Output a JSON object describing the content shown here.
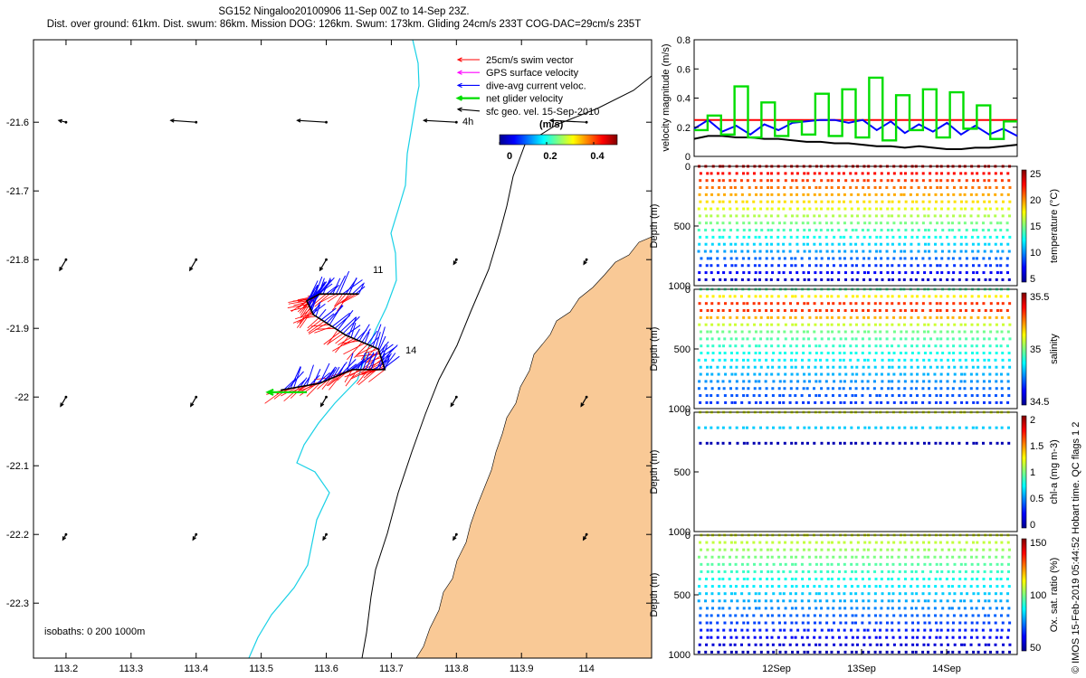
{
  "title_line1": "SG152 Ningaloo20100906 11-Sep 00Z to 14-Sep 23Z.",
  "title_line2": "Dist. over ground: 61km. Dist. swum: 86km. Mission DOG: 126km. Swum: 173km. Gliding 24cm/s 233T COG-DAC=29cm/s 235T",
  "side_note": "© IMOS 15-Feb-2019 05:44:52 Hobart time. QC flags 1  2",
  "colors": {
    "land": "#F9C996",
    "isobath200": "#19D1E6",
    "swim": "#FF0000",
    "gps": "#FF00FF",
    "dac": "#0000FF",
    "net": "#00DD00",
    "sfc": "#000000"
  },
  "chart_data": [
    {
      "type": "map",
      "x_ticks": [
        "113.2",
        "113.3",
        "113.4",
        "113.5",
        "113.6",
        "113.7",
        "113.8",
        "113.9",
        "114"
      ],
      "y_ticks": [
        "-21.6",
        "-21.7",
        "-21.8",
        "-21.9",
        "-22",
        "-22.1",
        "-22.2",
        "-22.3"
      ],
      "xlim": [
        113.15,
        114.1
      ],
      "ylim": [
        -22.38,
        -21.48
      ],
      "legend": [
        {
          "label": "25cm/s swim vector",
          "color": "#FF0000"
        },
        {
          "label": "GPS surface velocity",
          "color": "#FF00FF"
        },
        {
          "label": "dive-avg current veloc.",
          "color": "#0000FF"
        },
        {
          "label": "net glider velocity",
          "color": "#00DD00"
        },
        {
          "label": "sfc geo. vel. 15-Sep-2010",
          "color": "#000000"
        }
      ],
      "time_step_label": "4h",
      "colorbar": {
        "title": "(m/s)",
        "ticks": [
          "0",
          "0.2",
          "0.4"
        ],
        "range": [
          0,
          0.5
        ]
      },
      "isobaths_label": "isobaths: 0   200  1000m",
      "day_labels": [
        "11",
        "14"
      ],
      "track": [
        [
          113.65,
          -21.85
        ],
        [
          113.59,
          -21.85
        ],
        [
          113.57,
          -21.86
        ],
        [
          113.58,
          -21.88
        ],
        [
          113.63,
          -21.91
        ],
        [
          113.68,
          -21.93
        ],
        [
          113.69,
          -21.96
        ],
        [
          113.64,
          -21.96
        ],
        [
          113.59,
          -21.98
        ],
        [
          113.53,
          -21.99
        ]
      ]
    },
    {
      "type": "line",
      "ylabel": "velocity magnitude (m/s)",
      "ylim": [
        0,
        0.8
      ],
      "y_ticks": [
        "0",
        "0.2",
        "0.4",
        "0.6",
        "0.8"
      ],
      "series": [
        {
          "name": "swim",
          "color": "#FF0000",
          "values": [
            0.25,
            0.25
          ]
        },
        {
          "name": "dive-avg current",
          "color": "#0000FF",
          "values": [
            0.19,
            0.25,
            0.17,
            0.21,
            0.15,
            0.22,
            0.18,
            0.23,
            0.24,
            0.25,
            0.25,
            0.23,
            0.25,
            0.18,
            0.24,
            0.16,
            0.22,
            0.17,
            0.23,
            0.15,
            0.21,
            0.15,
            0.19,
            0.14
          ]
        },
        {
          "name": "sfc geo",
          "color": "#000000",
          "values": [
            0.12,
            0.14,
            0.14,
            0.13,
            0.13,
            0.12,
            0.12,
            0.11,
            0.1,
            0.1,
            0.09,
            0.09,
            0.08,
            0.07,
            0.07,
            0.06,
            0.07,
            0.06,
            0.05,
            0.05,
            0.06,
            0.06,
            0.07,
            0.08
          ]
        },
        {
          "name": "net glider",
          "color": "#00DD00",
          "values": [
            0.18,
            0.28,
            0.15,
            0.48,
            0.13,
            0.37,
            0.14,
            0.24,
            0.15,
            0.43,
            0.14,
            0.46,
            0.13,
            0.54,
            0.11,
            0.42,
            0.18,
            0.46,
            0.13,
            0.44,
            0.19,
            0.35,
            0.12,
            0.24
          ]
        }
      ]
    },
    {
      "type": "heatmap",
      "panels": [
        {
          "ylabel": "Depth (m)",
          "clabel": "temperature (°C)",
          "cticks": [
            "25",
            "20",
            "15",
            "10",
            "5"
          ],
          "y_ticks": [
            "0",
            "500",
            "1000"
          ],
          "profile_depth_max": 950
        },
        {
          "ylabel": "Depth (m)",
          "clabel": "salinity",
          "cticks": [
            "35.5",
            "35",
            "34.5"
          ],
          "y_ticks": [
            "0",
            "500",
            "1000"
          ],
          "profile_depth_max": 950
        },
        {
          "ylabel": "Depth (m)",
          "clabel": "chl-a (mg m-3)",
          "cticks": [
            "2",
            "1.5",
            "1",
            "0.5",
            "0"
          ],
          "y_ticks": [
            "0",
            "500",
            "1000"
          ],
          "profile_depth_max": 260
        },
        {
          "ylabel": "Depth (m)",
          "clabel": "Ox. sat. ratio (%)",
          "cticks": [
            "150",
            "100",
            "50"
          ],
          "y_ticks": [
            "0",
            "500",
            "1000"
          ],
          "profile_depth_max": 980
        }
      ],
      "x_ticks": [
        "12Sep",
        "13Sep",
        "14Sep"
      ],
      "profile_count": 26
    }
  ]
}
